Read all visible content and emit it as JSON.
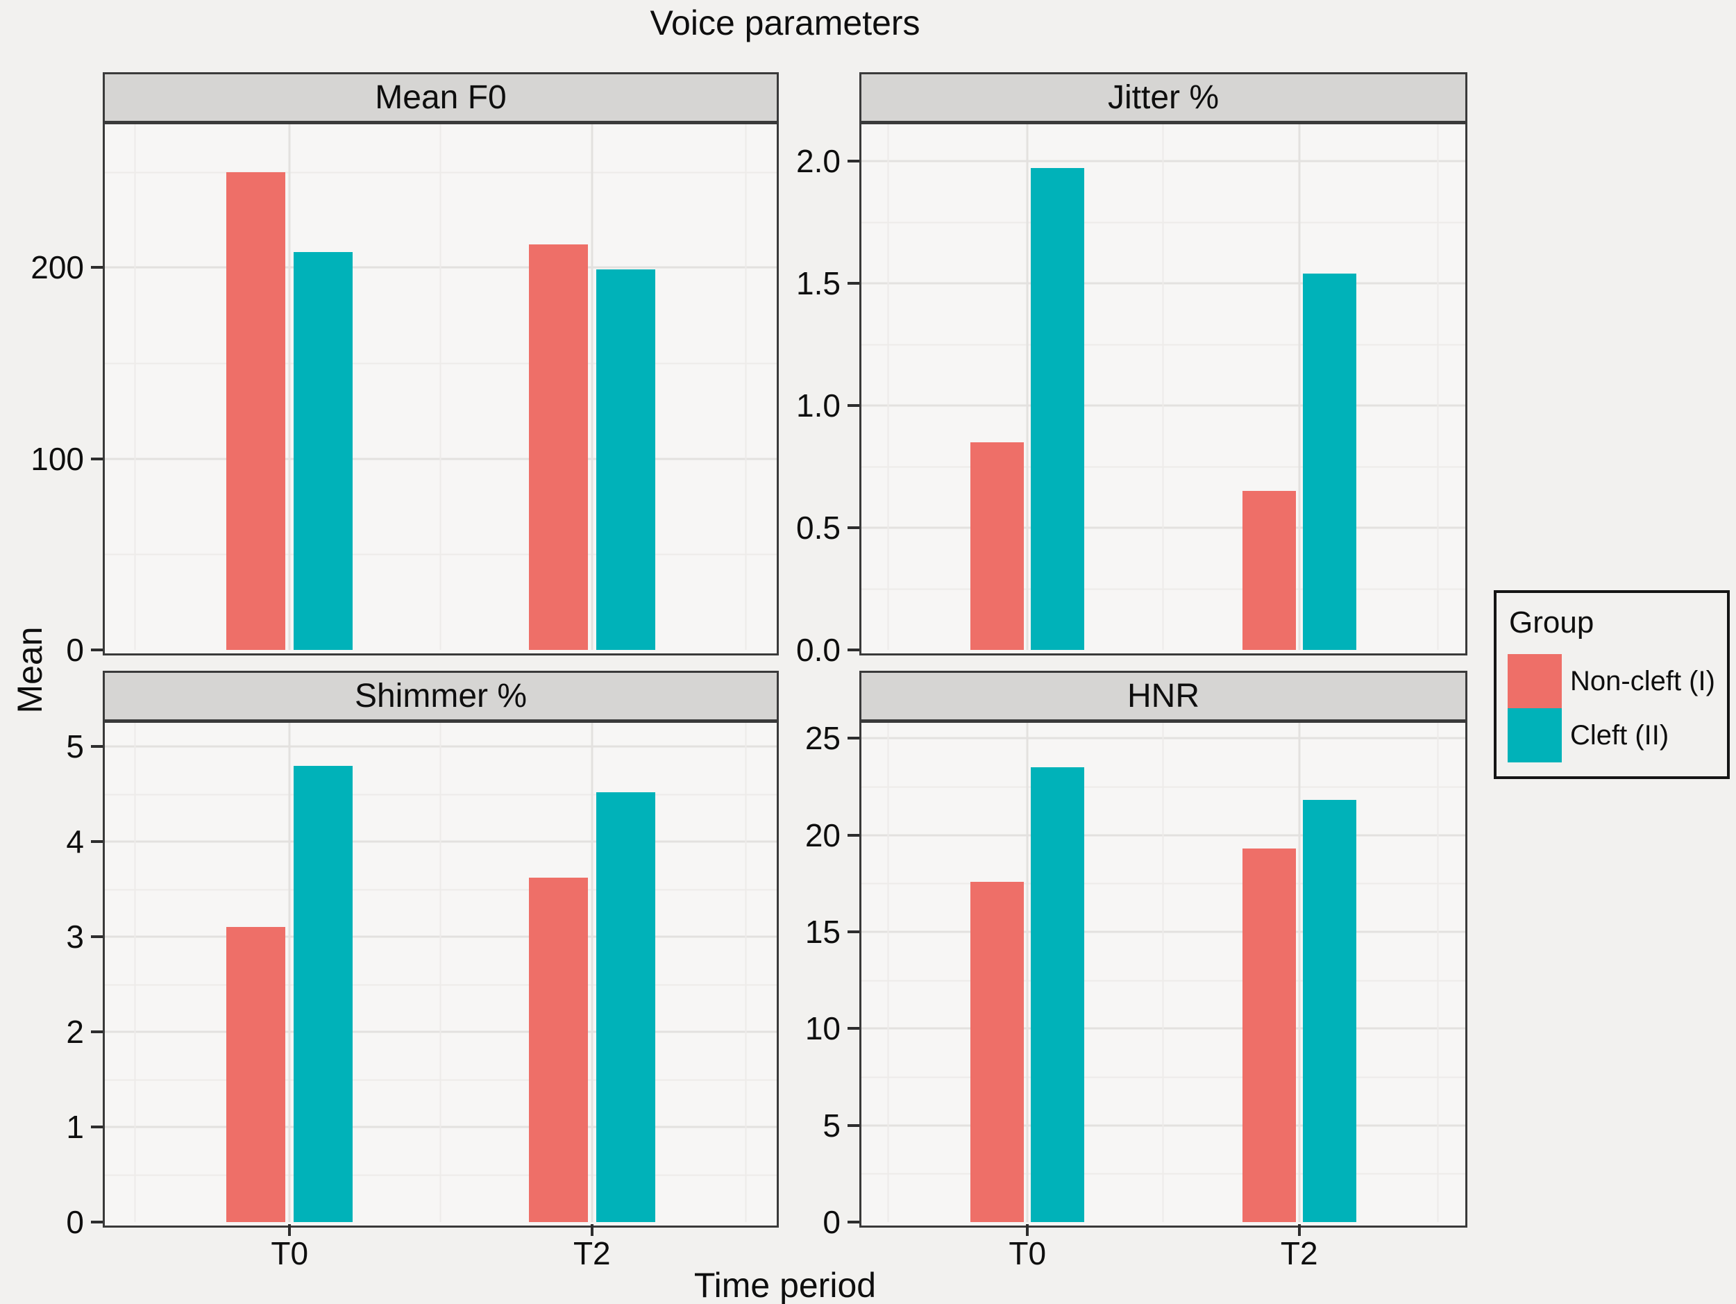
{
  "title": "Voice parameters",
  "axes": {
    "x_label": "Time period",
    "y_label": "Mean"
  },
  "legend": {
    "title": "Group",
    "items": [
      {
        "label": "Non-cleft (I)",
        "color": "#ee6f68"
      },
      {
        "label": "Cleft (II)",
        "color": "#00b2b9"
      }
    ]
  },
  "chart_data": [
    {
      "type": "bar",
      "title": "Mean F0",
      "categories": [
        "T0",
        "T2"
      ],
      "series": [
        {
          "name": "Non-cleft (I)",
          "color": "#ee6f68",
          "values": [
            250,
            212
          ]
        },
        {
          "name": "Cleft (II)",
          "color": "#00b2b9",
          "values": [
            208,
            199
          ]
        }
      ],
      "ylim": [
        0,
        275
      ],
      "yticks": [
        0,
        100,
        200
      ],
      "ytick_labels": [
        "0",
        "100",
        "200"
      ],
      "grid": true,
      "show_x_labels": false
    },
    {
      "type": "bar",
      "title": "Jitter %",
      "categories": [
        "T0",
        "T2"
      ],
      "series": [
        {
          "name": "Non-cleft (I)",
          "color": "#ee6f68",
          "values": [
            0.85,
            0.65
          ]
        },
        {
          "name": "Cleft (II)",
          "color": "#00b2b9",
          "values": [
            1.97,
            1.54
          ]
        }
      ],
      "ylim": [
        0,
        2.15
      ],
      "yticks": [
        0,
        0.5,
        1,
        1.5,
        2
      ],
      "ytick_labels": [
        "0.0",
        "0.5",
        "1.0",
        "1.5",
        "2.0"
      ],
      "grid": true,
      "show_x_labels": false
    },
    {
      "type": "bar",
      "title": "Shimmer %",
      "categories": [
        "T0",
        "T2"
      ],
      "series": [
        {
          "name": "Non-cleft (I)",
          "color": "#ee6f68",
          "values": [
            3.1,
            3.62
          ]
        },
        {
          "name": "Cleft (II)",
          "color": "#00b2b9",
          "values": [
            4.8,
            4.52
          ]
        }
      ],
      "ylim": [
        0,
        5.25
      ],
      "yticks": [
        0,
        1,
        2,
        3,
        4,
        5
      ],
      "ytick_labels": [
        "0",
        "1",
        "2",
        "3",
        "4",
        "5"
      ],
      "grid": true,
      "show_x_labels": true
    },
    {
      "type": "bar",
      "title": "HNR",
      "categories": [
        "T0",
        "T2"
      ],
      "series": [
        {
          "name": "Non-cleft (I)",
          "color": "#ee6f68",
          "values": [
            17.6,
            19.3
          ]
        },
        {
          "name": "Cleft (II)",
          "color": "#00b2b9",
          "values": [
            23.5,
            21.8
          ]
        }
      ],
      "ylim": [
        0,
        25.8
      ],
      "yticks": [
        0,
        5,
        10,
        15,
        20,
        25
      ],
      "ytick_labels": [
        "0",
        "5",
        "10",
        "15",
        "20",
        "25"
      ],
      "grid": true,
      "show_x_labels": true
    }
  ]
}
